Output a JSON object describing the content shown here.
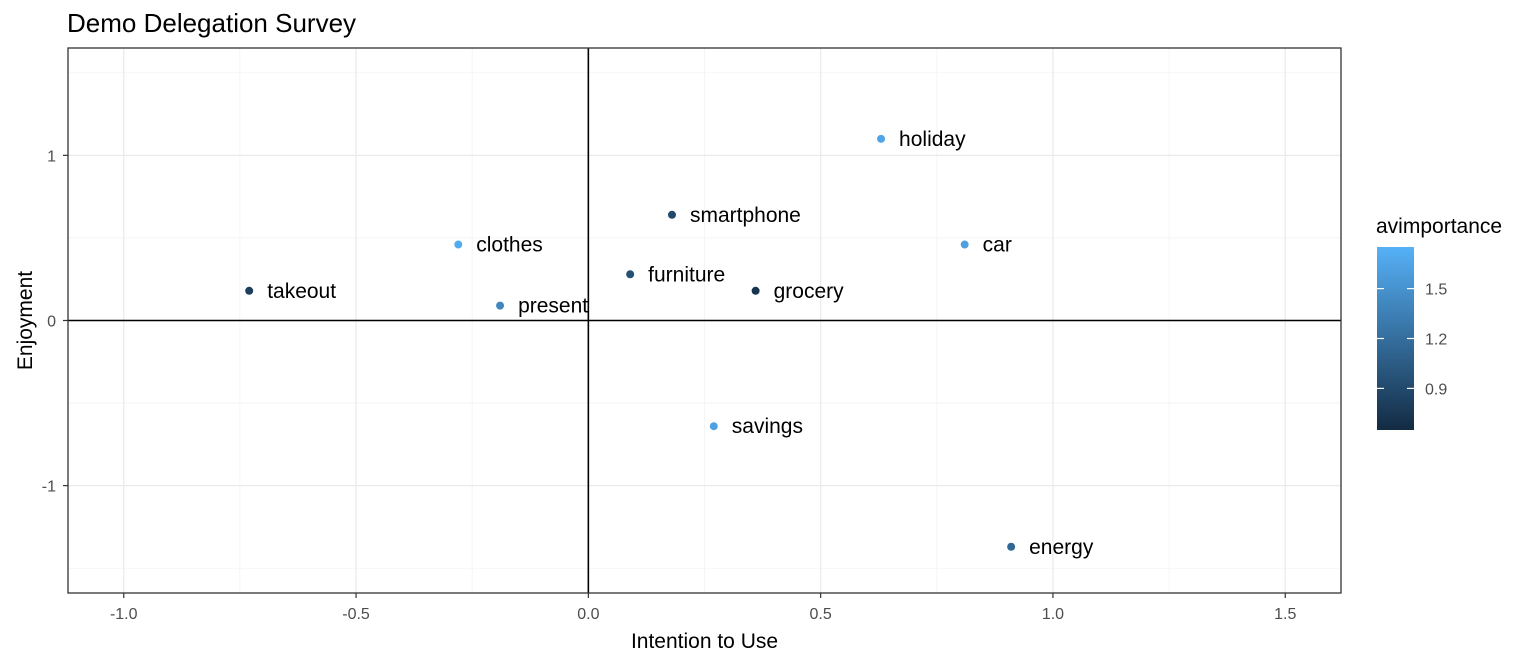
{
  "chart_data": {
    "type": "scatter",
    "title": "Demo Delegation Survey",
    "xlabel": "Intention to Use",
    "ylabel": "Enjoyment",
    "xlim": [
      -1.12,
      1.62
    ],
    "ylim": [
      -1.65,
      1.65
    ],
    "x_ticks": [
      -1.0,
      -0.5,
      0.0,
      0.5,
      1.0,
      1.5
    ],
    "x_tick_labels": [
      "-1.0",
      "-0.5",
      "0.0",
      "0.5",
      "1.0",
      "1.5"
    ],
    "y_ticks": [
      -1,
      0,
      1
    ],
    "y_tick_labels": [
      "-1",
      "0",
      "1"
    ],
    "grid": true,
    "reference_lines": {
      "x": 0,
      "y": 0
    },
    "color_scale": {
      "name": "avimportance",
      "low_color": "#132B43",
      "high_color": "#56B1F7",
      "min": 0.65,
      "max": 1.75,
      "ticks": [
        0.9,
        1.2,
        1.5
      ],
      "tick_labels": [
        "0.9",
        "1.2",
        "1.5"
      ]
    },
    "legend_position": "right",
    "points": [
      {
        "label": "holiday",
        "x": 0.63,
        "y": 1.1,
        "avimportance": 1.65
      },
      {
        "label": "smartphone",
        "x": 0.18,
        "y": 0.64,
        "avimportance": 0.9
      },
      {
        "label": "clothes",
        "x": -0.28,
        "y": 0.46,
        "avimportance": 1.7
      },
      {
        "label": "car",
        "x": 0.81,
        "y": 0.46,
        "avimportance": 1.6
      },
      {
        "label": "takeout",
        "x": -0.73,
        "y": 0.18,
        "avimportance": 0.8
      },
      {
        "label": "furniture",
        "x": 0.09,
        "y": 0.28,
        "avimportance": 0.95
      },
      {
        "label": "grocery",
        "x": 0.36,
        "y": 0.18,
        "avimportance": 0.72
      },
      {
        "label": "present",
        "x": -0.19,
        "y": 0.09,
        "avimportance": 1.4
      },
      {
        "label": "savings",
        "x": 0.27,
        "y": -0.64,
        "avimportance": 1.62
      },
      {
        "label": "energy",
        "x": 0.91,
        "y": -1.37,
        "avimportance": 1.15
      }
    ]
  }
}
